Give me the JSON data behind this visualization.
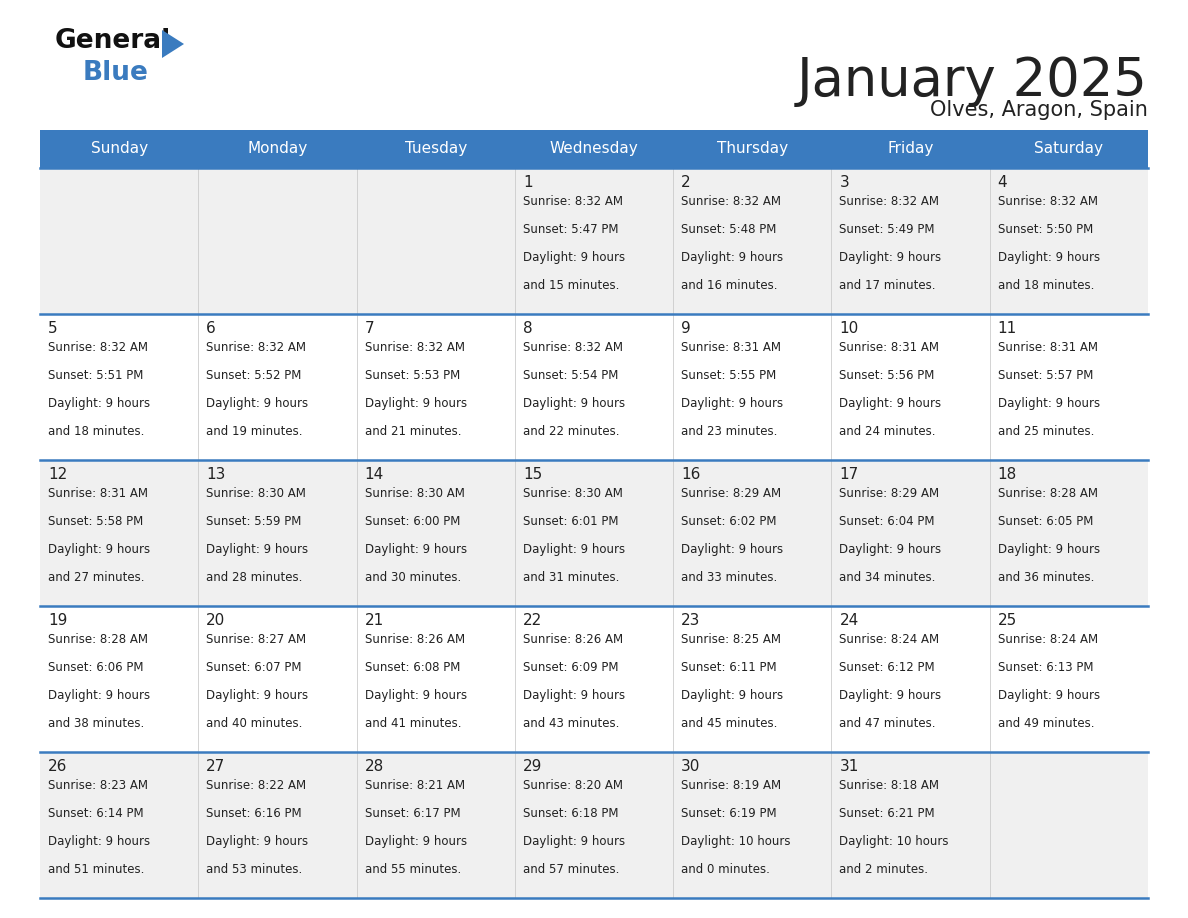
{
  "title": "January 2025",
  "subtitle": "Olves, Aragon, Spain",
  "days_of_week": [
    "Sunday",
    "Monday",
    "Tuesday",
    "Wednesday",
    "Thursday",
    "Friday",
    "Saturday"
  ],
  "header_bg": "#3a7bbf",
  "header_text": "#ffffff",
  "row_bg_odd": "#f0f0f0",
  "row_bg_even": "#ffffff",
  "cell_text_color": "#222222",
  "border_color": "#3a7bbf",
  "title_color": "#222222",
  "subtitle_color": "#222222",
  "logo_general_color": "#111111",
  "logo_blue_color": "#3a7bbf",
  "days": [
    {
      "day": 1,
      "col": 3,
      "row": 0,
      "sunrise": "8:32 AM",
      "sunset": "5:47 PM",
      "daylight": "9 hours",
      "daylight2": "and 15 minutes."
    },
    {
      "day": 2,
      "col": 4,
      "row": 0,
      "sunrise": "8:32 AM",
      "sunset": "5:48 PM",
      "daylight": "9 hours",
      "daylight2": "and 16 minutes."
    },
    {
      "day": 3,
      "col": 5,
      "row": 0,
      "sunrise": "8:32 AM",
      "sunset": "5:49 PM",
      "daylight": "9 hours",
      "daylight2": "and 17 minutes."
    },
    {
      "day": 4,
      "col": 6,
      "row": 0,
      "sunrise": "8:32 AM",
      "sunset": "5:50 PM",
      "daylight": "9 hours",
      "daylight2": "and 18 minutes."
    },
    {
      "day": 5,
      "col": 0,
      "row": 1,
      "sunrise": "8:32 AM",
      "sunset": "5:51 PM",
      "daylight": "9 hours",
      "daylight2": "and 18 minutes."
    },
    {
      "day": 6,
      "col": 1,
      "row": 1,
      "sunrise": "8:32 AM",
      "sunset": "5:52 PM",
      "daylight": "9 hours",
      "daylight2": "and 19 minutes."
    },
    {
      "day": 7,
      "col": 2,
      "row": 1,
      "sunrise": "8:32 AM",
      "sunset": "5:53 PM",
      "daylight": "9 hours",
      "daylight2": "and 21 minutes."
    },
    {
      "day": 8,
      "col": 3,
      "row": 1,
      "sunrise": "8:32 AM",
      "sunset": "5:54 PM",
      "daylight": "9 hours",
      "daylight2": "and 22 minutes."
    },
    {
      "day": 9,
      "col": 4,
      "row": 1,
      "sunrise": "8:31 AM",
      "sunset": "5:55 PM",
      "daylight": "9 hours",
      "daylight2": "and 23 minutes."
    },
    {
      "day": 10,
      "col": 5,
      "row": 1,
      "sunrise": "8:31 AM",
      "sunset": "5:56 PM",
      "daylight": "9 hours",
      "daylight2": "and 24 minutes."
    },
    {
      "day": 11,
      "col": 6,
      "row": 1,
      "sunrise": "8:31 AM",
      "sunset": "5:57 PM",
      "daylight": "9 hours",
      "daylight2": "and 25 minutes."
    },
    {
      "day": 12,
      "col": 0,
      "row": 2,
      "sunrise": "8:31 AM",
      "sunset": "5:58 PM",
      "daylight": "9 hours",
      "daylight2": "and 27 minutes."
    },
    {
      "day": 13,
      "col": 1,
      "row": 2,
      "sunrise": "8:30 AM",
      "sunset": "5:59 PM",
      "daylight": "9 hours",
      "daylight2": "and 28 minutes."
    },
    {
      "day": 14,
      "col": 2,
      "row": 2,
      "sunrise": "8:30 AM",
      "sunset": "6:00 PM",
      "daylight": "9 hours",
      "daylight2": "and 30 minutes."
    },
    {
      "day": 15,
      "col": 3,
      "row": 2,
      "sunrise": "8:30 AM",
      "sunset": "6:01 PM",
      "daylight": "9 hours",
      "daylight2": "and 31 minutes."
    },
    {
      "day": 16,
      "col": 4,
      "row": 2,
      "sunrise": "8:29 AM",
      "sunset": "6:02 PM",
      "daylight": "9 hours",
      "daylight2": "and 33 minutes."
    },
    {
      "day": 17,
      "col": 5,
      "row": 2,
      "sunrise": "8:29 AM",
      "sunset": "6:04 PM",
      "daylight": "9 hours",
      "daylight2": "and 34 minutes."
    },
    {
      "day": 18,
      "col": 6,
      "row": 2,
      "sunrise": "8:28 AM",
      "sunset": "6:05 PM",
      "daylight": "9 hours",
      "daylight2": "and 36 minutes."
    },
    {
      "day": 19,
      "col": 0,
      "row": 3,
      "sunrise": "8:28 AM",
      "sunset": "6:06 PM",
      "daylight": "9 hours",
      "daylight2": "and 38 minutes."
    },
    {
      "day": 20,
      "col": 1,
      "row": 3,
      "sunrise": "8:27 AM",
      "sunset": "6:07 PM",
      "daylight": "9 hours",
      "daylight2": "and 40 minutes."
    },
    {
      "day": 21,
      "col": 2,
      "row": 3,
      "sunrise": "8:26 AM",
      "sunset": "6:08 PM",
      "daylight": "9 hours",
      "daylight2": "and 41 minutes."
    },
    {
      "day": 22,
      "col": 3,
      "row": 3,
      "sunrise": "8:26 AM",
      "sunset": "6:09 PM",
      "daylight": "9 hours",
      "daylight2": "and 43 minutes."
    },
    {
      "day": 23,
      "col": 4,
      "row": 3,
      "sunrise": "8:25 AM",
      "sunset": "6:11 PM",
      "daylight": "9 hours",
      "daylight2": "and 45 minutes."
    },
    {
      "day": 24,
      "col": 5,
      "row": 3,
      "sunrise": "8:24 AM",
      "sunset": "6:12 PM",
      "daylight": "9 hours",
      "daylight2": "and 47 minutes."
    },
    {
      "day": 25,
      "col": 6,
      "row": 3,
      "sunrise": "8:24 AM",
      "sunset": "6:13 PM",
      "daylight": "9 hours",
      "daylight2": "and 49 minutes."
    },
    {
      "day": 26,
      "col": 0,
      "row": 4,
      "sunrise": "8:23 AM",
      "sunset": "6:14 PM",
      "daylight": "9 hours",
      "daylight2": "and 51 minutes."
    },
    {
      "day": 27,
      "col": 1,
      "row": 4,
      "sunrise": "8:22 AM",
      "sunset": "6:16 PM",
      "daylight": "9 hours",
      "daylight2": "and 53 minutes."
    },
    {
      "day": 28,
      "col": 2,
      "row": 4,
      "sunrise": "8:21 AM",
      "sunset": "6:17 PM",
      "daylight": "9 hours",
      "daylight2": "and 55 minutes."
    },
    {
      "day": 29,
      "col": 3,
      "row": 4,
      "sunrise": "8:20 AM",
      "sunset": "6:18 PM",
      "daylight": "9 hours",
      "daylight2": "and 57 minutes."
    },
    {
      "day": 30,
      "col": 4,
      "row": 4,
      "sunrise": "8:19 AM",
      "sunset": "6:19 PM",
      "daylight": "10 hours",
      "daylight2": "and 0 minutes."
    },
    {
      "day": 31,
      "col": 5,
      "row": 4,
      "sunrise": "8:18 AM",
      "sunset": "6:21 PM",
      "daylight": "10 hours",
      "daylight2": "and 2 minutes."
    }
  ]
}
